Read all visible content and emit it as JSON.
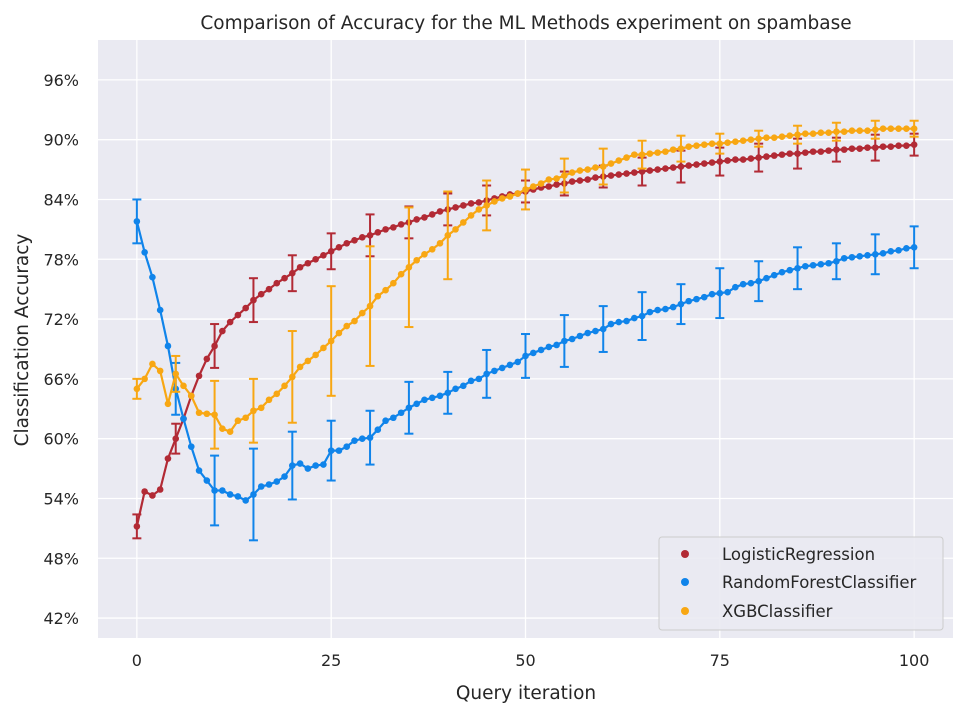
{
  "chart_data": {
    "type": "line",
    "title": "Comparison of Accuracy for the ML Methods experiment on spambase",
    "xlabel": "Query iteration",
    "ylabel": "Classification Accuracy",
    "xlim": [
      -5,
      105
    ],
    "ylim": [
      40,
      100
    ],
    "xticks": [
      0,
      25,
      50,
      75,
      100
    ],
    "xtick_labels": [
      "0",
      "25",
      "50",
      "75",
      "100"
    ],
    "yticks": [
      42,
      48,
      54,
      60,
      66,
      72,
      78,
      84,
      90,
      96
    ],
    "ytick_labels": [
      "42%",
      "48%",
      "54%",
      "60%",
      "66%",
      "72%",
      "78%",
      "84%",
      "90%",
      "96%"
    ],
    "grid": true,
    "legend_position": "bottom-right",
    "series": [
      {
        "name": "LogisticRegression",
        "color": "#b22a35",
        "x": [
          0,
          1,
          2,
          3,
          4,
          5,
          6,
          7,
          8,
          9,
          10,
          11,
          12,
          13,
          14,
          15,
          16,
          17,
          18,
          19,
          20,
          21,
          22,
          23,
          24,
          25,
          26,
          27,
          28,
          29,
          30,
          31,
          32,
          33,
          34,
          35,
          36,
          37,
          38,
          39,
          40,
          41,
          42,
          43,
          44,
          45,
          46,
          47,
          48,
          49,
          50,
          51,
          52,
          53,
          54,
          55,
          56,
          57,
          58,
          59,
          60,
          61,
          62,
          63,
          64,
          65,
          66,
          67,
          68,
          69,
          70,
          71,
          72,
          73,
          74,
          75,
          76,
          77,
          78,
          79,
          80,
          81,
          82,
          83,
          84,
          85,
          86,
          87,
          88,
          89,
          90,
          91,
          92,
          93,
          94,
          95,
          96,
          97,
          98,
          99,
          100
        ],
        "y": [
          51.2,
          54.7,
          54.3,
          54.9,
          58.0,
          60.0,
          62.0,
          64.3,
          66.3,
          68.0,
          69.3,
          70.8,
          71.7,
          72.4,
          73.1,
          73.9,
          74.5,
          75.0,
          75.6,
          76.1,
          76.6,
          77.2,
          77.6,
          78.0,
          78.4,
          78.8,
          79.2,
          79.6,
          79.9,
          80.2,
          80.4,
          80.7,
          81.0,
          81.2,
          81.5,
          81.7,
          82.0,
          82.2,
          82.5,
          82.8,
          83.0,
          83.2,
          83.4,
          83.6,
          83.7,
          83.9,
          84.1,
          84.3,
          84.5,
          84.6,
          84.8,
          85.0,
          85.2,
          85.3,
          85.5,
          85.6,
          85.8,
          85.9,
          86.0,
          86.2,
          86.3,
          86.4,
          86.5,
          86.6,
          86.7,
          86.8,
          86.9,
          87.0,
          87.1,
          87.2,
          87.3,
          87.4,
          87.5,
          87.6,
          87.7,
          87.8,
          87.9,
          88.0,
          88.0,
          88.1,
          88.2,
          88.3,
          88.4,
          88.5,
          88.6,
          88.6,
          88.7,
          88.8,
          88.8,
          88.9,
          89.0,
          89.0,
          89.1,
          89.1,
          89.2,
          89.2,
          89.3,
          89.3,
          89.4,
          89.4,
          89.5
        ],
        "error_x": [
          0,
          5,
          10,
          15,
          20,
          25,
          30,
          35,
          40,
          45,
          50,
          55,
          60,
          65,
          70,
          75,
          80,
          85,
          90,
          95,
          100
        ],
        "error_y": [
          1.2,
          1.5,
          2.2,
          2.2,
          1.8,
          1.8,
          2.1,
          1.6,
          1.6,
          1.5,
          1.1,
          1.2,
          1.1,
          1.4,
          1.6,
          1.4,
          1.4,
          1.5,
          1.2,
          1.3,
          1.1
        ]
      },
      {
        "name": "RandomForestClassifier",
        "color": "#1084ea",
        "x": [
          0,
          1,
          2,
          3,
          4,
          5,
          6,
          7,
          8,
          9,
          10,
          11,
          12,
          13,
          14,
          15,
          16,
          17,
          18,
          19,
          20,
          21,
          22,
          23,
          24,
          25,
          26,
          27,
          28,
          29,
          30,
          31,
          32,
          33,
          34,
          35,
          36,
          37,
          38,
          39,
          40,
          41,
          42,
          43,
          44,
          45,
          46,
          47,
          48,
          49,
          50,
          51,
          52,
          53,
          54,
          55,
          56,
          57,
          58,
          59,
          60,
          61,
          62,
          63,
          64,
          65,
          66,
          67,
          68,
          69,
          70,
          71,
          72,
          73,
          74,
          75,
          76,
          77,
          78,
          79,
          80,
          81,
          82,
          83,
          84,
          85,
          86,
          87,
          88,
          89,
          90,
          91,
          92,
          93,
          94,
          95,
          96,
          97,
          98,
          99,
          100
        ],
        "y": [
          81.8,
          78.7,
          76.2,
          72.9,
          69.3,
          65.0,
          62.0,
          59.2,
          56.8,
          55.8,
          54.8,
          54.8,
          54.4,
          54.2,
          53.8,
          54.4,
          55.2,
          55.4,
          55.7,
          56.2,
          57.3,
          57.5,
          57.0,
          57.3,
          57.4,
          58.8,
          58.8,
          59.2,
          59.8,
          60.0,
          60.1,
          60.9,
          61.8,
          62.1,
          62.6,
          63.1,
          63.5,
          63.9,
          64.1,
          64.3,
          64.6,
          65.0,
          65.3,
          65.8,
          66.0,
          66.5,
          66.8,
          67.1,
          67.4,
          67.7,
          68.3,
          68.6,
          68.9,
          69.2,
          69.4,
          69.8,
          70.0,
          70.3,
          70.6,
          70.8,
          71.0,
          71.5,
          71.7,
          71.8,
          72.1,
          72.3,
          72.7,
          72.9,
          73.0,
          73.2,
          73.5,
          73.8,
          74.0,
          74.2,
          74.5,
          74.6,
          74.7,
          75.2,
          75.5,
          75.6,
          75.8,
          76.1,
          76.4,
          76.7,
          76.9,
          77.1,
          77.3,
          77.4,
          77.5,
          77.6,
          77.8,
          78.1,
          78.2,
          78.3,
          78.4,
          78.5,
          78.6,
          78.8,
          78.9,
          79.1,
          79.2
        ],
        "error_x": [
          0,
          5,
          10,
          15,
          20,
          25,
          30,
          35,
          40,
          45,
          50,
          55,
          60,
          65,
          70,
          75,
          80,
          85,
          90,
          95,
          100
        ],
        "error_y": [
          2.2,
          2.6,
          3.5,
          4.6,
          3.4,
          3.0,
          2.7,
          2.6,
          2.1,
          2.4,
          2.2,
          2.6,
          2.3,
          2.4,
          2.0,
          2.5,
          2.0,
          2.1,
          1.8,
          2.0,
          2.1
        ]
      },
      {
        "name": "XGBClassifier",
        "color": "#f8a713",
        "x": [
          0,
          1,
          2,
          3,
          4,
          5,
          6,
          7,
          8,
          9,
          10,
          11,
          12,
          13,
          14,
          15,
          16,
          17,
          18,
          19,
          20,
          21,
          22,
          23,
          24,
          25,
          26,
          27,
          28,
          29,
          30,
          31,
          32,
          33,
          34,
          35,
          36,
          37,
          38,
          39,
          40,
          41,
          42,
          43,
          44,
          45,
          46,
          47,
          48,
          49,
          50,
          51,
          52,
          53,
          54,
          55,
          56,
          57,
          58,
          59,
          60,
          61,
          62,
          63,
          64,
          65,
          66,
          67,
          68,
          69,
          70,
          71,
          72,
          73,
          74,
          75,
          76,
          77,
          78,
          79,
          80,
          81,
          82,
          83,
          84,
          85,
          86,
          87,
          88,
          89,
          90,
          91,
          92,
          93,
          94,
          95,
          96,
          97,
          98,
          99,
          100
        ],
        "y": [
          65.0,
          66.0,
          67.5,
          66.8,
          63.5,
          66.5,
          65.3,
          64.3,
          62.6,
          62.5,
          62.4,
          61.0,
          60.7,
          61.8,
          62.1,
          62.8,
          63.1,
          63.9,
          64.5,
          65.3,
          66.2,
          67.2,
          67.8,
          68.4,
          69.1,
          69.8,
          70.6,
          71.3,
          71.8,
          72.6,
          73.3,
          74.3,
          74.9,
          75.6,
          76.5,
          77.2,
          77.9,
          78.5,
          79.0,
          79.6,
          80.4,
          81.0,
          81.7,
          82.4,
          83.0,
          83.4,
          83.8,
          84.1,
          84.3,
          84.6,
          85.0,
          85.3,
          85.6,
          86.0,
          86.1,
          86.4,
          86.7,
          86.9,
          87.0,
          87.2,
          87.3,
          87.6,
          87.9,
          88.2,
          88.5,
          88.5,
          88.6,
          88.7,
          88.8,
          89.0,
          89.1,
          89.3,
          89.4,
          89.5,
          89.6,
          89.6,
          89.7,
          89.8,
          89.9,
          90.0,
          90.1,
          90.2,
          90.2,
          90.3,
          90.4,
          90.5,
          90.6,
          90.6,
          90.7,
          90.7,
          90.8,
          90.8,
          90.9,
          90.9,
          90.9,
          91.0,
          91.1,
          91.1,
          91.1,
          91.1,
          91.1
        ],
        "error_x": [
          0,
          5,
          10,
          15,
          20,
          25,
          30,
          35,
          40,
          45,
          50,
          55,
          60,
          65,
          70,
          75,
          80,
          85,
          90,
          95,
          100
        ],
        "error_y": [
          1.0,
          1.8,
          3.4,
          3.2,
          4.6,
          5.5,
          6.0,
          6.0,
          4.4,
          2.5,
          2.0,
          1.7,
          1.8,
          1.4,
          1.3,
          1.0,
          0.8,
          0.9,
          0.9,
          0.9,
          0.8
        ]
      }
    ]
  }
}
